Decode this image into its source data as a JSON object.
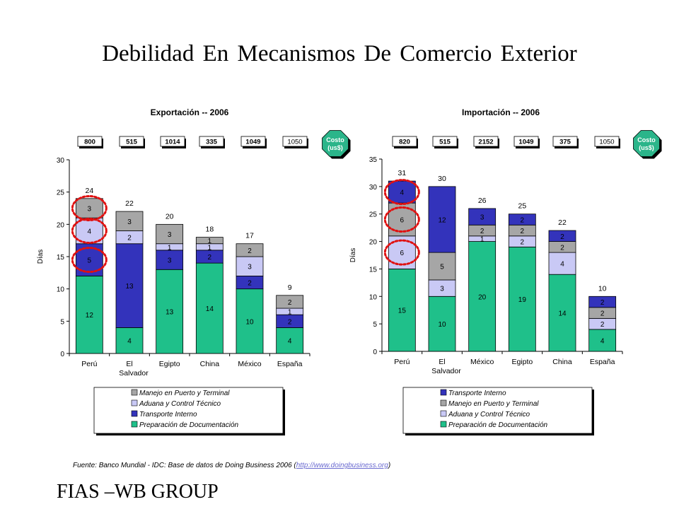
{
  "slide_title": "Debilidad En Mecanismos De Comercio Exterior",
  "source_prefix": "Fuente:  Banco Mundial - IDC: Base de datos de Doing Business 2006 (",
  "source_link": "http://www.doingbusiness.org",
  "source_suffix": ")",
  "footer": "FIAS –WB GROUP",
  "colors": {
    "transporte": "#3333bb",
    "manejo": "#a6a6a6",
    "aduana": "#c9c9f5",
    "preparacion": "#1fc08a",
    "highlight": "#e01010"
  },
  "chart_data": [
    {
      "type": "bar",
      "stacked": true,
      "title": "Exportación -- 2006",
      "ylabel": "Días",
      "ylim": [
        0,
        30
      ],
      "yticks": [
        0,
        5,
        10,
        15,
        20,
        25,
        30
      ],
      "categories": [
        "Perú",
        "El Salvador",
        "Egipto",
        "China",
        "México",
        "España"
      ],
      "category_labels": [
        [
          "Perú"
        ],
        [
          "El",
          "Salvador"
        ],
        [
          "Egipto"
        ],
        [
          "China"
        ],
        [
          "México"
        ],
        [
          "España"
        ]
      ],
      "series": [
        {
          "name": "Preparación de Documentación",
          "color_key": "preparacion",
          "values": [
            12,
            4,
            13,
            14,
            10,
            4
          ]
        },
        {
          "name": "Transporte Interno",
          "color_key": "transporte",
          "values": [
            5,
            13,
            3,
            2,
            2,
            2
          ]
        },
        {
          "name": "Aduana y Control Técnico",
          "color_key": "aduana",
          "values": [
            4,
            2,
            1,
            1,
            3,
            1
          ]
        },
        {
          "name": "Manejo en Puerto y Terminal",
          "color_key": "manejo",
          "values": [
            3,
            3,
            3,
            1,
            2,
            2
          ]
        }
      ],
      "totals": [
        24,
        22,
        20,
        18,
        17,
        9
      ],
      "costs": [
        "800",
        "515",
        "1014",
        "335",
        "1049",
        "1050"
      ],
      "cost_label": [
        "Costo",
        "(us$)"
      ],
      "legend": [
        {
          "name": "Manejo en Puerto y Terminal",
          "color_key": "manejo"
        },
        {
          "name": "Aduana y Control Técnico",
          "color_key": "aduana"
        },
        {
          "name": "Transporte Interno",
          "color_key": "transporte"
        },
        {
          "name": "Preparación de Documentación",
          "color_key": "preparacion"
        }
      ],
      "highlighted_segments": [
        "Transporte Interno",
        "Aduana y Control Técnico",
        "Manejo en Puerto y Terminal"
      ],
      "highlighted_category": "Perú"
    },
    {
      "type": "bar",
      "stacked": true,
      "title": "Importación -- 2006",
      "ylabel": "Días",
      "ylim": [
        0,
        35
      ],
      "yticks": [
        0,
        5,
        10,
        15,
        20,
        25,
        30,
        35
      ],
      "categories": [
        "Perú",
        "El Salvador",
        "México",
        "Egipto",
        "China",
        "España"
      ],
      "category_labels": [
        [
          "Perú"
        ],
        [
          "El",
          "Salvador"
        ],
        [
          "México"
        ],
        [
          "Egipto"
        ],
        [
          "China"
        ],
        [
          "España"
        ]
      ],
      "series": [
        {
          "name": "Preparación de Documentación",
          "color_key": "preparacion",
          "values": [
            15,
            10,
            20,
            19,
            14,
            4
          ]
        },
        {
          "name": "Aduana y Control Técnico",
          "color_key": "aduana",
          "values": [
            6,
            3,
            1,
            2,
            4,
            2
          ]
        },
        {
          "name": "Manejo en Puerto y Terminal",
          "color_key": "manejo",
          "values": [
            6,
            5,
            2,
            2,
            2,
            2
          ]
        },
        {
          "name": "Transporte Interno",
          "color_key": "transporte",
          "values": [
            4,
            12,
            3,
            2,
            2,
            2
          ]
        }
      ],
      "totals": [
        31,
        30,
        26,
        25,
        22,
        10
      ],
      "costs": [
        "820",
        "515",
        "2152",
        "1049",
        "375",
        "1050"
      ],
      "cost_label": [
        "Costo",
        "(us$)"
      ],
      "legend": [
        {
          "name": "Transporte Interno",
          "color_key": "transporte"
        },
        {
          "name": "Manejo en Puerto y Terminal",
          "color_key": "manejo"
        },
        {
          "name": "Aduana y Control Técnico",
          "color_key": "aduana"
        },
        {
          "name": "Preparación de Documentación",
          "color_key": "preparacion"
        }
      ],
      "highlighted_segments": [
        "Transporte Interno",
        "Manejo en Puerto y Terminal",
        "Aduana y Control Técnico"
      ],
      "highlighted_category": "Perú"
    }
  ]
}
